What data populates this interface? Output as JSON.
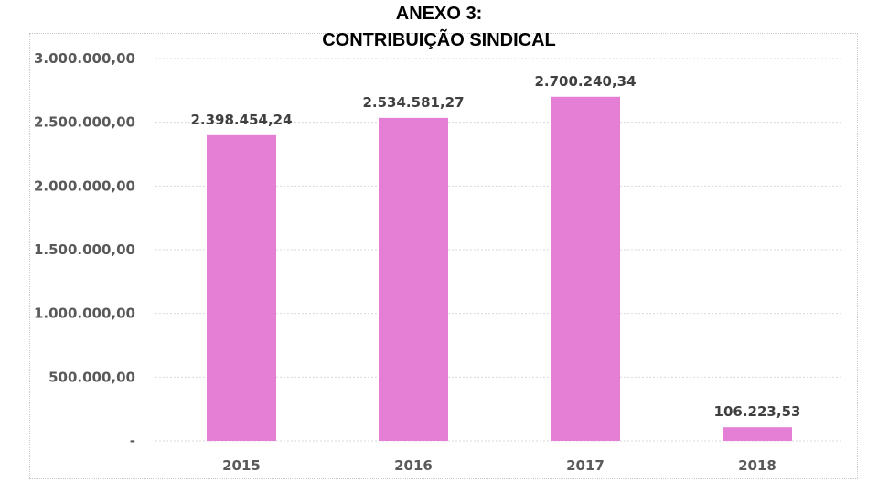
{
  "chart_data": {
    "type": "bar",
    "title": "ANEXO 3:",
    "subtitle": "CONTRIBUIÇÃO SINDICAL",
    "categories": [
      "2015",
      "2016",
      "2017",
      "2018"
    ],
    "values": [
      2398454.24,
      2534581.27,
      2700240.34,
      106223.53
    ],
    "value_labels": [
      "2.398.454,24",
      "2.534.581,27",
      "2.700.240,34",
      "106.223,53"
    ],
    "y_ticks": [
      0,
      500000,
      1000000,
      1500000,
      2000000,
      2500000,
      3000000
    ],
    "y_tick_labels": [
      "-",
      "500.000,00",
      "1.000.000,00",
      "1.500.000,00",
      "2.000.000,00",
      "2.500.000,00",
      "3.000.000,00"
    ],
    "ylim": [
      0,
      3000000
    ],
    "xlabel": "",
    "ylabel": "",
    "grid": true,
    "legend": "none",
    "bar_color": "#e57fd6",
    "grid_color": "#d9d9d9"
  }
}
